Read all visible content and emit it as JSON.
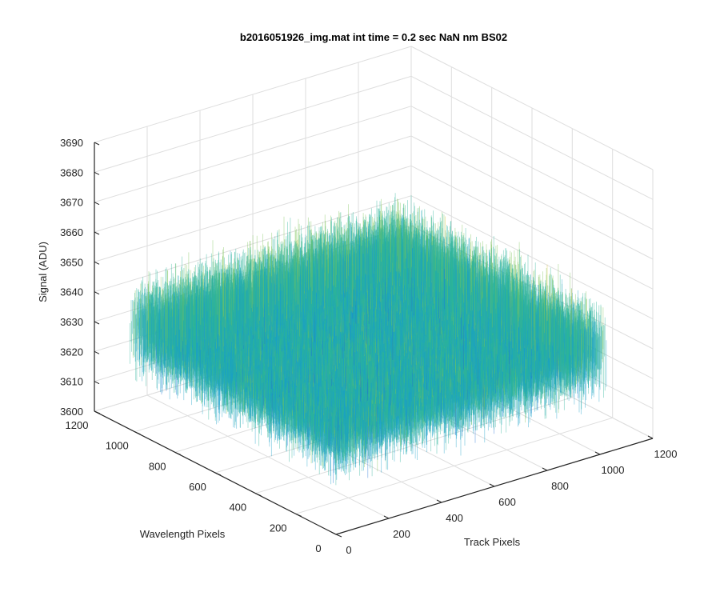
{
  "chart_data": {
    "type": "surface3d",
    "title": "b2016051926_img.mat int time = 0.2 sec  NaN nm BS02",
    "xlabel": "Track Pixels",
    "ylabel": "Wavelength Pixels",
    "zlabel": "Signal (ADU)",
    "xlim": [
      0,
      1200
    ],
    "ylim": [
      0,
      1200
    ],
    "zlim": [
      3600,
      3690
    ],
    "x_ticks": [
      "0",
      "200",
      "400",
      "600",
      "800",
      "1000",
      "1200"
    ],
    "y_ticks": [
      "0",
      "200",
      "400",
      "600",
      "800",
      "1000",
      "1200"
    ],
    "z_ticks": [
      "3600",
      "3610",
      "3620",
      "3630",
      "3640",
      "3650",
      "3660",
      "3670",
      "3680",
      "3690"
    ],
    "surface": {
      "x_range": [
        0,
        1024
      ],
      "y_range": [
        0,
        1024
      ],
      "mean_signal": 3635,
      "signal_min": 3605,
      "signal_max": 3668,
      "colormap": [
        "#1f6fd6",
        "#1aa0c8",
        "#2bb59a",
        "#7ec45a",
        "#d9c23d"
      ]
    },
    "grid": true,
    "colors": {
      "axis": "#262626",
      "grid": "#dedede"
    }
  }
}
